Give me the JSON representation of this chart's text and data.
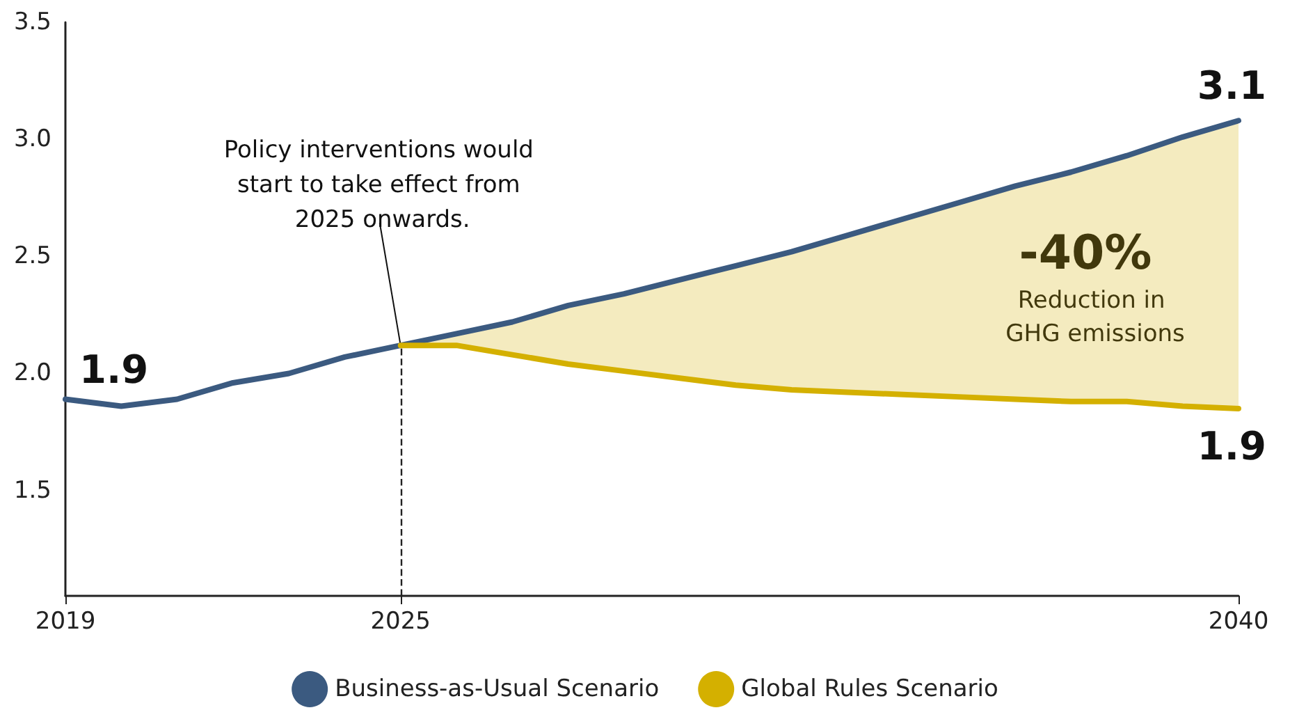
{
  "chart_data": {
    "type": "line",
    "x": [
      2019,
      2020,
      2021,
      2022,
      2023,
      2024,
      2025,
      2026,
      2027,
      2028,
      2029,
      2030,
      2031,
      2032,
      2033,
      2034,
      2035,
      2036,
      2037,
      2038,
      2039,
      2040
    ],
    "series": [
      {
        "name": "Business-as-Usual Scenario",
        "color": "#3b5a80",
        "value_labels": [
          "1.9",
          null,
          null,
          null,
          null,
          null,
          null,
          null,
          null,
          null,
          null,
          null,
          null,
          null,
          null,
          null,
          null,
          null,
          null,
          null,
          null,
          "3.1"
        ],
        "values": [
          1.89,
          1.86,
          1.89,
          1.96,
          2.0,
          2.07,
          2.12,
          2.17,
          2.22,
          2.29,
          2.34,
          2.4,
          2.46,
          2.52,
          2.59,
          2.66,
          2.73,
          2.8,
          2.86,
          2.93,
          3.01,
          3.08
        ]
      },
      {
        "name": "Global Rules Scenario",
        "color": "#d4b000",
        "value_labels": [
          null,
          null,
          null,
          null,
          null,
          null,
          null,
          null,
          null,
          null,
          null,
          null,
          null,
          null,
          null,
          null,
          null,
          null,
          null,
          null,
          null,
          "1.9"
        ],
        "values": [
          null,
          null,
          null,
          null,
          null,
          null,
          2.12,
          2.12,
          2.08,
          2.04,
          2.01,
          1.98,
          1.95,
          1.93,
          1.92,
          1.91,
          1.9,
          1.89,
          1.88,
          1.88,
          1.86,
          1.85
        ],
        "lower": [
          null,
          null,
          null,
          null,
          null,
          null,
          2.12,
          2.12,
          2.08,
          2.04,
          2.01,
          1.98,
          1.95,
          1.93,
          1.92,
          1.91,
          1.9,
          1.89,
          1.88,
          1.88,
          1.86,
          1.85
        ],
        "upper": [
          null,
          null,
          null,
          null,
          null,
          null,
          2.12,
          2.17,
          2.22,
          2.29,
          2.34,
          2.4,
          2.46,
          2.52,
          2.59,
          2.66,
          2.73,
          2.8,
          2.86,
          2.93,
          3.01,
          3.08
        ]
      }
    ],
    "xlim": [
      2019,
      2040
    ],
    "xticks": [
      2019,
      2025,
      2040
    ],
    "ylim": [
      1.05,
      3.5
    ],
    "yticks": [
      1.5,
      {
        "value": 2,
        "label": "2.0"
      },
      2.5,
      {
        "value": 3,
        "label": "3.0"
      },
      3.5
    ],
    "ref_lines": [
      {
        "axis": "x",
        "value": 2025,
        "label": "Policy interventions would start to take effect from 2025 onwards.",
        "line_style": "dashed",
        "color": "#222222"
      }
    ],
    "annotations": [
      "-40%",
      "Reduction in GHG emissions"
    ],
    "grid": false,
    "legend": "bottom",
    "marker": "none",
    "line_style": "solid"
  }
}
